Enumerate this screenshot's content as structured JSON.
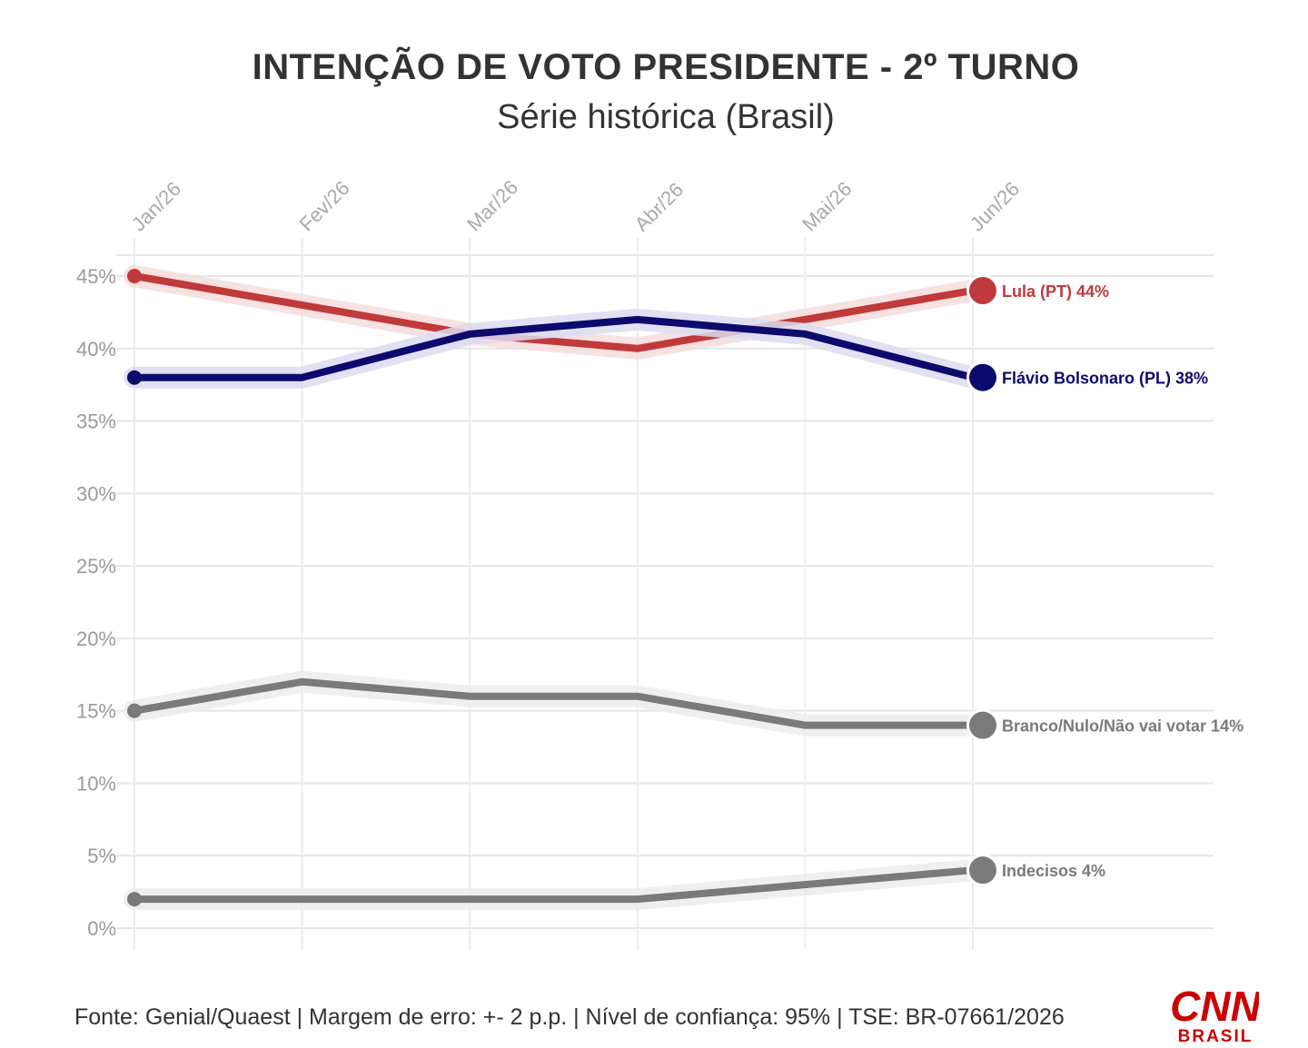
{
  "header": {
    "title": "INTENÇÃO DE VOTO PRESIDENTE - 2º TURNO",
    "subtitle": "Série histórica (Brasil)"
  },
  "footer": {
    "source": "Fonte: Genial/Quaest | Margem de erro: +- 2 p.p. | Nível de confiança: 95% | TSE: BR-07661/2026"
  },
  "logo": {
    "brand": "CNN",
    "sub": "BRASIL",
    "color": "#cc0000"
  },
  "chart_data": {
    "type": "line",
    "categories": [
      "Jan/26",
      "Fev/26",
      "Mar/26",
      "Abr/26",
      "Mai/26",
      "Jun/26"
    ],
    "ylim": [
      0,
      45
    ],
    "yticks": [
      0,
      5,
      10,
      15,
      20,
      25,
      30,
      35,
      40,
      45
    ],
    "ytick_labels": [
      "0%",
      "5%",
      "10%",
      "15%",
      "20%",
      "25%",
      "30%",
      "35%",
      "40%",
      "45%"
    ],
    "grid": true,
    "series": [
      {
        "name": "Lula (PT)",
        "label": "Lula (PT) 44%",
        "values": [
          45,
          43,
          41,
          40,
          42,
          44
        ],
        "color": "#c0393b"
      },
      {
        "name": "Flávio Bolsonaro (PL)",
        "label": "Flávio Bolsonaro (PL) 38%",
        "values": [
          38,
          38,
          41,
          42,
          41,
          38
        ],
        "color": "#0d0a6e"
      },
      {
        "name": "Branco/Nulo/Não vai votar",
        "label": "Branco/Nulo/Não vai votar 14%",
        "values": [
          15,
          17,
          16,
          16,
          14,
          14
        ],
        "color": "#7a7a7a"
      },
      {
        "name": "Indecisos",
        "label": "Indecisos 4%",
        "values": [
          2,
          2,
          2,
          2,
          3,
          4
        ],
        "color": "#7a7a7a"
      }
    ]
  }
}
